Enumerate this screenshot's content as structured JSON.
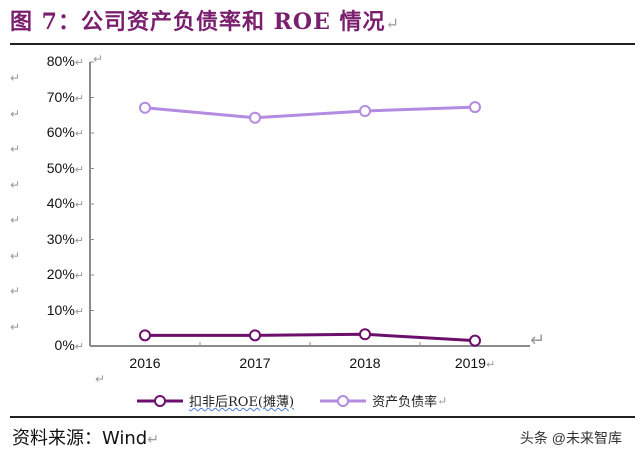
{
  "header": {
    "title": "图 7：公司资产负债率和 ROE 情况",
    "return_mark": "↵"
  },
  "chart_data": {
    "type": "line",
    "title": "图 7：公司资产负债率和 ROE 情况",
    "xlabel": "",
    "ylabel": "",
    "categories": [
      "2016",
      "2017",
      "2018",
      "2019"
    ],
    "y_ticks": [
      "0%",
      "10%",
      "20%",
      "30%",
      "40%",
      "50%",
      "60%",
      "70%",
      "80%"
    ],
    "ylim": [
      0,
      80
    ],
    "grid": false,
    "legend_position": "bottom",
    "series": [
      {
        "name": "扣非后ROE(摊薄)",
        "color": "#6b0f6b",
        "values": [
          3.0,
          3.0,
          3.3,
          1.5
        ]
      },
      {
        "name": "资产负债率",
        "color": "#b38be0",
        "values": [
          67.1,
          64.3,
          66.2,
          67.3
        ]
      }
    ]
  },
  "legend": {
    "items": [
      {
        "label": "扣非后ROE(摊薄)",
        "color": "#6b0f6b"
      },
      {
        "label": "资产负债率",
        "color": "#b38be0"
      }
    ]
  },
  "footer": {
    "source": "资料来源：Wind",
    "watermark": "头条 @未来智库"
  }
}
